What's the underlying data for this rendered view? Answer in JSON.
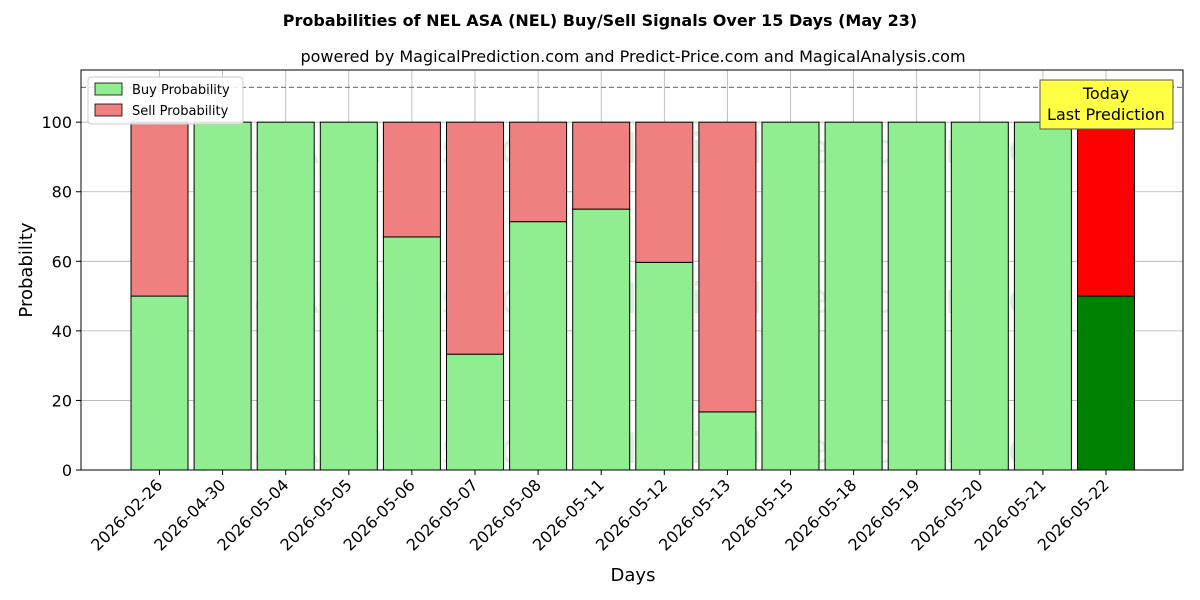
{
  "chart_data": {
    "type": "bar",
    "stacked": true,
    "title": "Probabilities of NEL ASA (NEL) Buy/Sell Signals Over 15 Days (May 23)",
    "subtitle": "powered by MagicalPrediction.com and Predict-Price.com and MagicalAnalysis.com",
    "xlabel": "Days",
    "ylabel": "Probability",
    "ylim": [
      0,
      115
    ],
    "yticks": [
      0,
      20,
      40,
      60,
      80,
      100
    ],
    "reference_line": 110,
    "grid": true,
    "legend_position": "top-left",
    "categories": [
      "2026-02-26",
      "2026-04-30",
      "2026-05-04",
      "2026-05-05",
      "2026-05-06",
      "2026-05-07",
      "2026-05-08",
      "2026-05-11",
      "2026-05-12",
      "2026-05-13",
      "2026-05-15",
      "2026-05-18",
      "2026-05-19",
      "2026-05-20",
      "2026-05-21",
      "2026-05-22"
    ],
    "series": [
      {
        "name": "Buy Probability",
        "values": [
          50,
          100,
          100,
          100,
          67,
          33.3,
          71.4,
          75,
          59.7,
          16.7,
          100,
          100,
          100,
          100,
          100,
          50
        ],
        "color": "#90ee90",
        "highlight_color": "#008000"
      },
      {
        "name": "Sell Probability",
        "values": [
          50,
          0,
          0,
          0,
          33,
          66.7,
          28.6,
          25,
          40.3,
          83.3,
          0,
          0,
          0,
          0,
          0,
          50
        ],
        "color": "#f08080",
        "highlight_color": "#ff0000"
      }
    ],
    "annotation": {
      "lines": [
        "Today",
        "Last Prediction"
      ],
      "color": "#ffff44"
    },
    "watermarks": [
      "MagicalAnalysis.com",
      "MagicalPrediction.com"
    ]
  }
}
